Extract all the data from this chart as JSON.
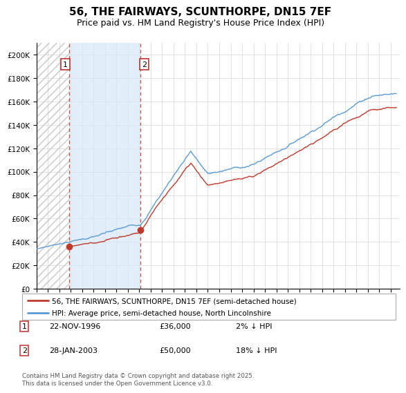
{
  "title": "56, THE FAIRWAYS, SCUNTHORPE, DN15 7EF",
  "subtitle": "Price paid vs. HM Land Registry's House Price Index (HPI)",
  "title_fontsize": 11,
  "subtitle_fontsize": 9,
  "ylim": [
    0,
    210000
  ],
  "yticks": [
    0,
    20000,
    40000,
    60000,
    80000,
    100000,
    120000,
    140000,
    160000,
    180000,
    200000
  ],
  "ytick_labels": [
    "£0",
    "£20K",
    "£40K",
    "£60K",
    "£80K",
    "£100K",
    "£120K",
    "£140K",
    "£160K",
    "£180K",
    "£200K"
  ],
  "xlim_start": 1994.0,
  "xlim_end": 2025.8,
  "hpi_color": "#5b9bd5",
  "price_color": "#c0392b",
  "sale1_t": 1996.88,
  "sale1_p": 36000,
  "sale2_t": 2003.07,
  "sale2_p": 50000,
  "legend_line1": "56, THE FAIRWAYS, SCUNTHORPE, DN15 7EF (semi-detached house)",
  "legend_line2": "HPI: Average price, semi-detached house, North Lincolnshire",
  "footer": "Contains HM Land Registry data © Crown copyright and database right 2025.\nThis data is licensed under the Open Government Licence v3.0.",
  "bg_color": "#ffffff",
  "grid_color": "#dddddd",
  "fill_between_color": "#d6e8f7",
  "hatch_color": "#c8c8c8"
}
